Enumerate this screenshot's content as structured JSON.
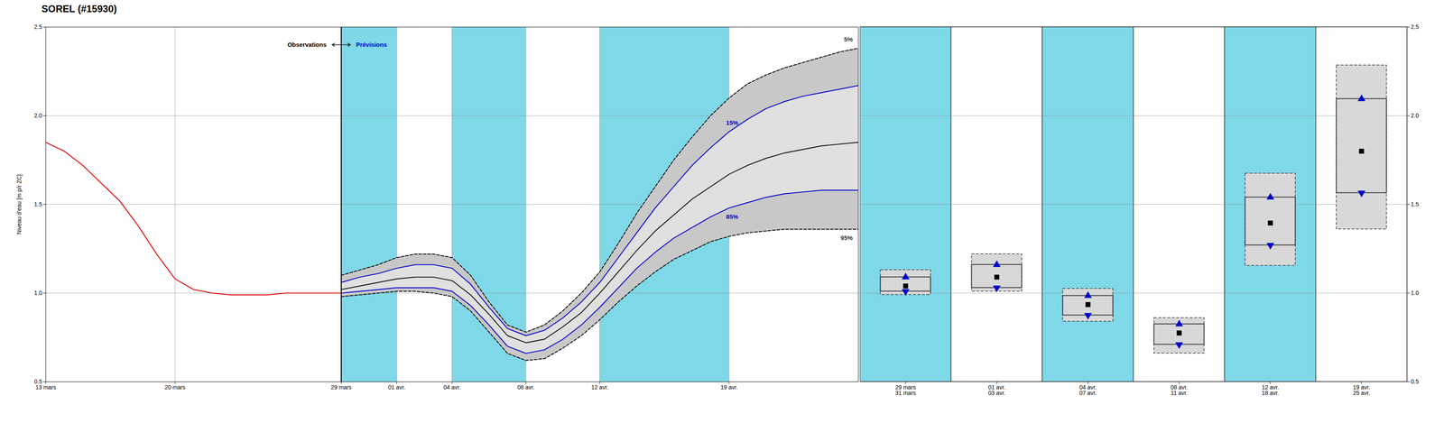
{
  "chart_data": [
    {
      "type": "line",
      "title": "SOREL (#15930)",
      "ylabel": "Niveau d'eau [m p/r ZC]",
      "xlim": [
        0,
        44
      ],
      "xticks": [
        {
          "value": 0,
          "label": "13 mars"
        },
        {
          "value": 7,
          "label": "20 mars"
        },
        {
          "value": 16,
          "label": "29 mars"
        },
        {
          "value": 19,
          "label": "01 avr."
        },
        {
          "value": 22,
          "label": "04 avr."
        },
        {
          "value": 26,
          "label": "08 avr."
        },
        {
          "value": 30,
          "label": "12 avr."
        },
        {
          "value": 37,
          "label": "19 avr."
        }
      ],
      "ylim": [
        0.5,
        2.5
      ],
      "yticks": [
        0.5,
        {
          "value": 1.0,
          "label": "1.0"
        },
        1.5,
        {
          "value": 2.0,
          "label": "2.0"
        },
        2.5
      ],
      "grid": true,
      "bands": [
        {
          "x1": 16,
          "x2": 19,
          "color": "#7fd8e8"
        },
        {
          "x1": 22,
          "x2": 26,
          "color": "#7fd8e8"
        },
        {
          "x1": 30,
          "x2": 37,
          "color": "#7fd8e8"
        }
      ],
      "areas": [
        {
          "color": "#c8c8c8",
          "x": [
            16,
            17,
            18,
            19,
            20,
            21,
            22,
            23,
            24,
            25,
            26,
            27,
            28,
            29,
            30,
            31,
            32,
            33,
            34,
            35,
            36,
            37,
            38,
            39,
            40,
            41,
            42,
            43,
            44
          ],
          "low": [
            0.98,
            0.99,
            1.0,
            1.01,
            1.01,
            1.0,
            0.98,
            0.9,
            0.78,
            0.66,
            0.62,
            0.63,
            0.69,
            0.76,
            0.85,
            0.95,
            1.04,
            1.12,
            1.19,
            1.24,
            1.29,
            1.32,
            1.34,
            1.35,
            1.36,
            1.36,
            1.36,
            1.36,
            1.36
          ],
          "high": [
            1.1,
            1.13,
            1.16,
            1.2,
            1.22,
            1.22,
            1.2,
            1.1,
            0.95,
            0.82,
            0.78,
            0.82,
            0.9,
            1.0,
            1.12,
            1.28,
            1.45,
            1.6,
            1.75,
            1.88,
            2.0,
            2.1,
            2.18,
            2.23,
            2.27,
            2.3,
            2.33,
            2.36,
            2.38
          ]
        },
        {
          "color": "#e0e0e0",
          "x": [
            16,
            17,
            18,
            19,
            20,
            21,
            22,
            23,
            24,
            25,
            26,
            27,
            28,
            29,
            30,
            31,
            32,
            33,
            34,
            35,
            36,
            37,
            38,
            39,
            40,
            41,
            42,
            43,
            44
          ],
          "low": [
            1.0,
            1.01,
            1.02,
            1.03,
            1.03,
            1.03,
            1.01,
            0.93,
            0.82,
            0.7,
            0.66,
            0.68,
            0.74,
            0.82,
            0.92,
            1.03,
            1.14,
            1.23,
            1.31,
            1.37,
            1.43,
            1.48,
            1.51,
            1.54,
            1.56,
            1.57,
            1.58,
            1.58,
            1.58
          ],
          "high": [
            1.06,
            1.09,
            1.11,
            1.14,
            1.16,
            1.16,
            1.14,
            1.05,
            0.92,
            0.8,
            0.76,
            0.79,
            0.86,
            0.95,
            1.06,
            1.2,
            1.34,
            1.48,
            1.6,
            1.72,
            1.82,
            1.91,
            1.98,
            2.04,
            2.08,
            2.11,
            2.13,
            2.15,
            2.17
          ]
        }
      ],
      "series": [
        {
          "color": "#111111",
          "line_style": "dashed",
          "x": [
            16,
            17,
            18,
            19,
            20,
            21,
            22,
            23,
            24,
            25,
            26,
            27,
            28,
            29,
            30,
            31,
            32,
            33,
            34,
            35,
            36,
            37,
            38,
            39,
            40,
            41,
            42,
            43,
            44
          ],
          "values": [
            1.1,
            1.13,
            1.16,
            1.2,
            1.22,
            1.22,
            1.2,
            1.1,
            0.95,
            0.82,
            0.78,
            0.82,
            0.9,
            1.0,
            1.12,
            1.28,
            1.45,
            1.6,
            1.75,
            1.88,
            2.0,
            2.1,
            2.18,
            2.23,
            2.27,
            2.3,
            2.33,
            2.36,
            2.38
          ]
        },
        {
          "color": "#111111",
          "line_style": "dashed",
          "x": [
            16,
            17,
            18,
            19,
            20,
            21,
            22,
            23,
            24,
            25,
            26,
            27,
            28,
            29,
            30,
            31,
            32,
            33,
            34,
            35,
            36,
            37,
            38,
            39,
            40,
            41,
            42,
            43,
            44
          ],
          "values": [
            0.98,
            0.99,
            1.0,
            1.01,
            1.01,
            1.0,
            0.98,
            0.9,
            0.78,
            0.66,
            0.62,
            0.63,
            0.69,
            0.76,
            0.85,
            0.95,
            1.04,
            1.12,
            1.19,
            1.24,
            1.29,
            1.32,
            1.34,
            1.35,
            1.36,
            1.36,
            1.36,
            1.36,
            1.36
          ]
        },
        {
          "color": "#111111",
          "line_style": "solid",
          "x": [
            16,
            17,
            18,
            19,
            20,
            21,
            22,
            23,
            24,
            25,
            26,
            27,
            28,
            29,
            30,
            31,
            32,
            33,
            34,
            35,
            36,
            37,
            38,
            39,
            40,
            41,
            42,
            43,
            44
          ],
          "values": [
            1.02,
            1.04,
            1.06,
            1.08,
            1.09,
            1.09,
            1.07,
            0.99,
            0.88,
            0.76,
            0.72,
            0.74,
            0.81,
            0.89,
            1.0,
            1.12,
            1.24,
            1.35,
            1.44,
            1.53,
            1.6,
            1.67,
            1.72,
            1.76,
            1.79,
            1.81,
            1.83,
            1.84,
            1.85
          ]
        },
        {
          "color": "#0000cc",
          "line_style": "solid",
          "x": [
            16,
            17,
            18,
            19,
            20,
            21,
            22,
            23,
            24,
            25,
            26,
            27,
            28,
            29,
            30,
            31,
            32,
            33,
            34,
            35,
            36,
            37,
            38,
            39,
            40,
            41,
            42,
            43,
            44
          ],
          "values": [
            1.06,
            1.09,
            1.11,
            1.14,
            1.16,
            1.16,
            1.14,
            1.05,
            0.92,
            0.8,
            0.76,
            0.79,
            0.86,
            0.95,
            1.06,
            1.2,
            1.34,
            1.48,
            1.6,
            1.72,
            1.82,
            1.91,
            1.98,
            2.04,
            2.08,
            2.11,
            2.13,
            2.15,
            2.17
          ]
        },
        {
          "color": "#0000cc",
          "line_style": "solid",
          "x": [
            16,
            17,
            18,
            19,
            20,
            21,
            22,
            23,
            24,
            25,
            26,
            27,
            28,
            29,
            30,
            31,
            32,
            33,
            34,
            35,
            36,
            37,
            38,
            39,
            40,
            41,
            42,
            43,
            44
          ],
          "values": [
            1.0,
            1.01,
            1.02,
            1.03,
            1.03,
            1.03,
            1.01,
            0.93,
            0.82,
            0.7,
            0.66,
            0.68,
            0.74,
            0.82,
            0.92,
            1.03,
            1.14,
            1.23,
            1.31,
            1.37,
            1.43,
            1.48,
            1.51,
            1.54,
            1.56,
            1.57,
            1.58,
            1.58,
            1.58
          ]
        },
        {
          "color": "#dd0000",
          "line_style": "solid",
          "x": [
            0,
            1,
            2,
            3,
            4,
            5,
            6,
            7,
            8,
            9,
            10,
            11,
            12,
            13,
            14,
            15,
            16
          ],
          "values": [
            1.85,
            1.8,
            1.72,
            1.62,
            1.52,
            1.38,
            1.22,
            1.08,
            1.02,
            1.0,
            0.99,
            0.99,
            0.99,
            1.0,
            1.0,
            1.0,
            1.0
          ]
        }
      ],
      "boundary_x": 16,
      "annotations": [
        {
          "text": "5%",
          "x": 43.7,
          "y": 2.43,
          "color": "#333333"
        },
        {
          "text": "15%",
          "x": 37.5,
          "y": 1.96,
          "color": "#0000cc"
        },
        {
          "text": "85%",
          "x": 37.5,
          "y": 1.43,
          "color": "#0000cc"
        },
        {
          "text": "95%",
          "x": 43.7,
          "y": 1.31,
          "color": "#333333"
        },
        {
          "text": "Observations",
          "x": 15.2,
          "y": 2.4,
          "color": "#000000"
        },
        {
          "text": "Prévisions",
          "x": 16.8,
          "y": 2.4,
          "color": "#0000cc"
        }
      ]
    },
    {
      "type": "box",
      "categories": [
        "29 mars\n31 mars",
        "01 avr.\n03 avr.",
        "04 avr.\n07 avr.",
        "08 avr.\n11 avr.",
        "12 avr.\n18 avr.",
        "19 avr.\n25 avr."
      ],
      "colors": [
        "#7fd8e8",
        "#ffffff",
        "#7fd8e8",
        "#ffffff",
        "#7fd8e8",
        "#ffffff"
      ],
      "ylim": [
        0.5,
        2.5
      ],
      "yticks": [
        0.5,
        {
          "value": 1.0,
          "label": "1.0"
        },
        1.5,
        {
          "value": 2.0,
          "label": "2.0"
        },
        2.5
      ],
      "grid": true,
      "series": [
        {
          "line_style": "dashed",
          "values": [
            1.13,
            1.22,
            1.025,
            0.86,
            1.675,
            2.285
          ]
        },
        {
          "line_style": "solid",
          "color": "#0000cc",
          "marker": "triangle-up",
          "values": [
            1.09,
            1.16,
            0.985,
            0.825,
            1.54,
            2.095
          ]
        },
        {
          "color": "#000000",
          "marker": "square",
          "values": [
            1.04,
            1.09,
            0.935,
            0.775,
            1.395,
            1.8
          ]
        },
        {
          "line_style": "solid",
          "color": "#0000cc",
          "marker": "triangle-down",
          "values": [
            1.01,
            1.03,
            0.875,
            0.71,
            1.27,
            1.565
          ]
        },
        {
          "line_style": "dashed",
          "values": [
            0.99,
            1.01,
            0.84,
            0.66,
            1.155,
            1.36
          ]
        }
      ]
    }
  ]
}
